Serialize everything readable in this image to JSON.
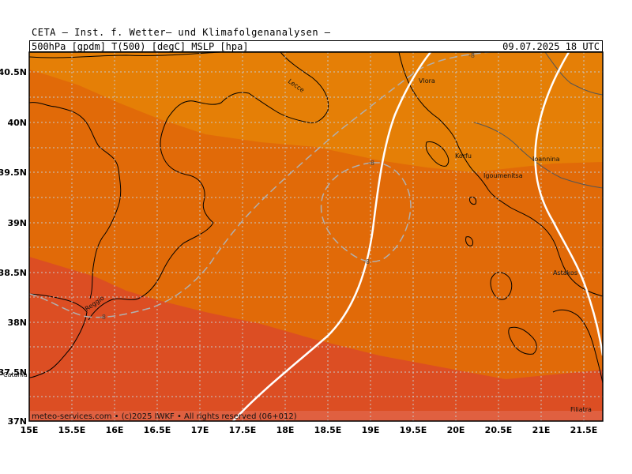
{
  "header": {
    "title": "CETA – Inst. f. Wetter– und Klimafolgenanalysen –",
    "params": "500hPa [gpdm] T(500) [degC] MSLP [hpa]",
    "datetime": "09.07.2025 18 UTC"
  },
  "map": {
    "lon_labels": [
      "15E",
      "15.5E",
      "16E",
      "16.5E",
      "17E",
      "17.5E",
      "18E",
      "18.5E",
      "19E",
      "19.5E",
      "20E",
      "20.5E",
      "21E",
      "21.5E"
    ],
    "lat_labels": [
      "40.5N",
      "40N",
      "39.5N",
      "39N",
      "38.5N",
      "38N",
      "37.5N",
      "37N"
    ],
    "colors": {
      "band_light": "#e57f06",
      "band_mid": "#e16a08",
      "band_dark": "#dc4e23",
      "credit_band": "#e06040",
      "isotherm": "#b0b0b0",
      "geopotential": "#ffffff",
      "coast": "#000000",
      "grid": "#c8c8c8"
    },
    "cities": [
      {
        "name": "Lecce"
      },
      {
        "name": "Vlora"
      },
      {
        "name": "Korfu"
      },
      {
        "name": "Igoumenitsa"
      },
      {
        "name": "Ioannina"
      },
      {
        "name": "Astakos"
      },
      {
        "name": "Reggio"
      },
      {
        "name": "Filiatra"
      },
      {
        "name": "Catania"
      }
    ],
    "isotherm_labels": [
      "-8",
      "-8",
      "-8",
      "-8"
    ],
    "credit": "meteo-services.com • (c)2025 IWKF • All rights reserved (06+012)"
  }
}
